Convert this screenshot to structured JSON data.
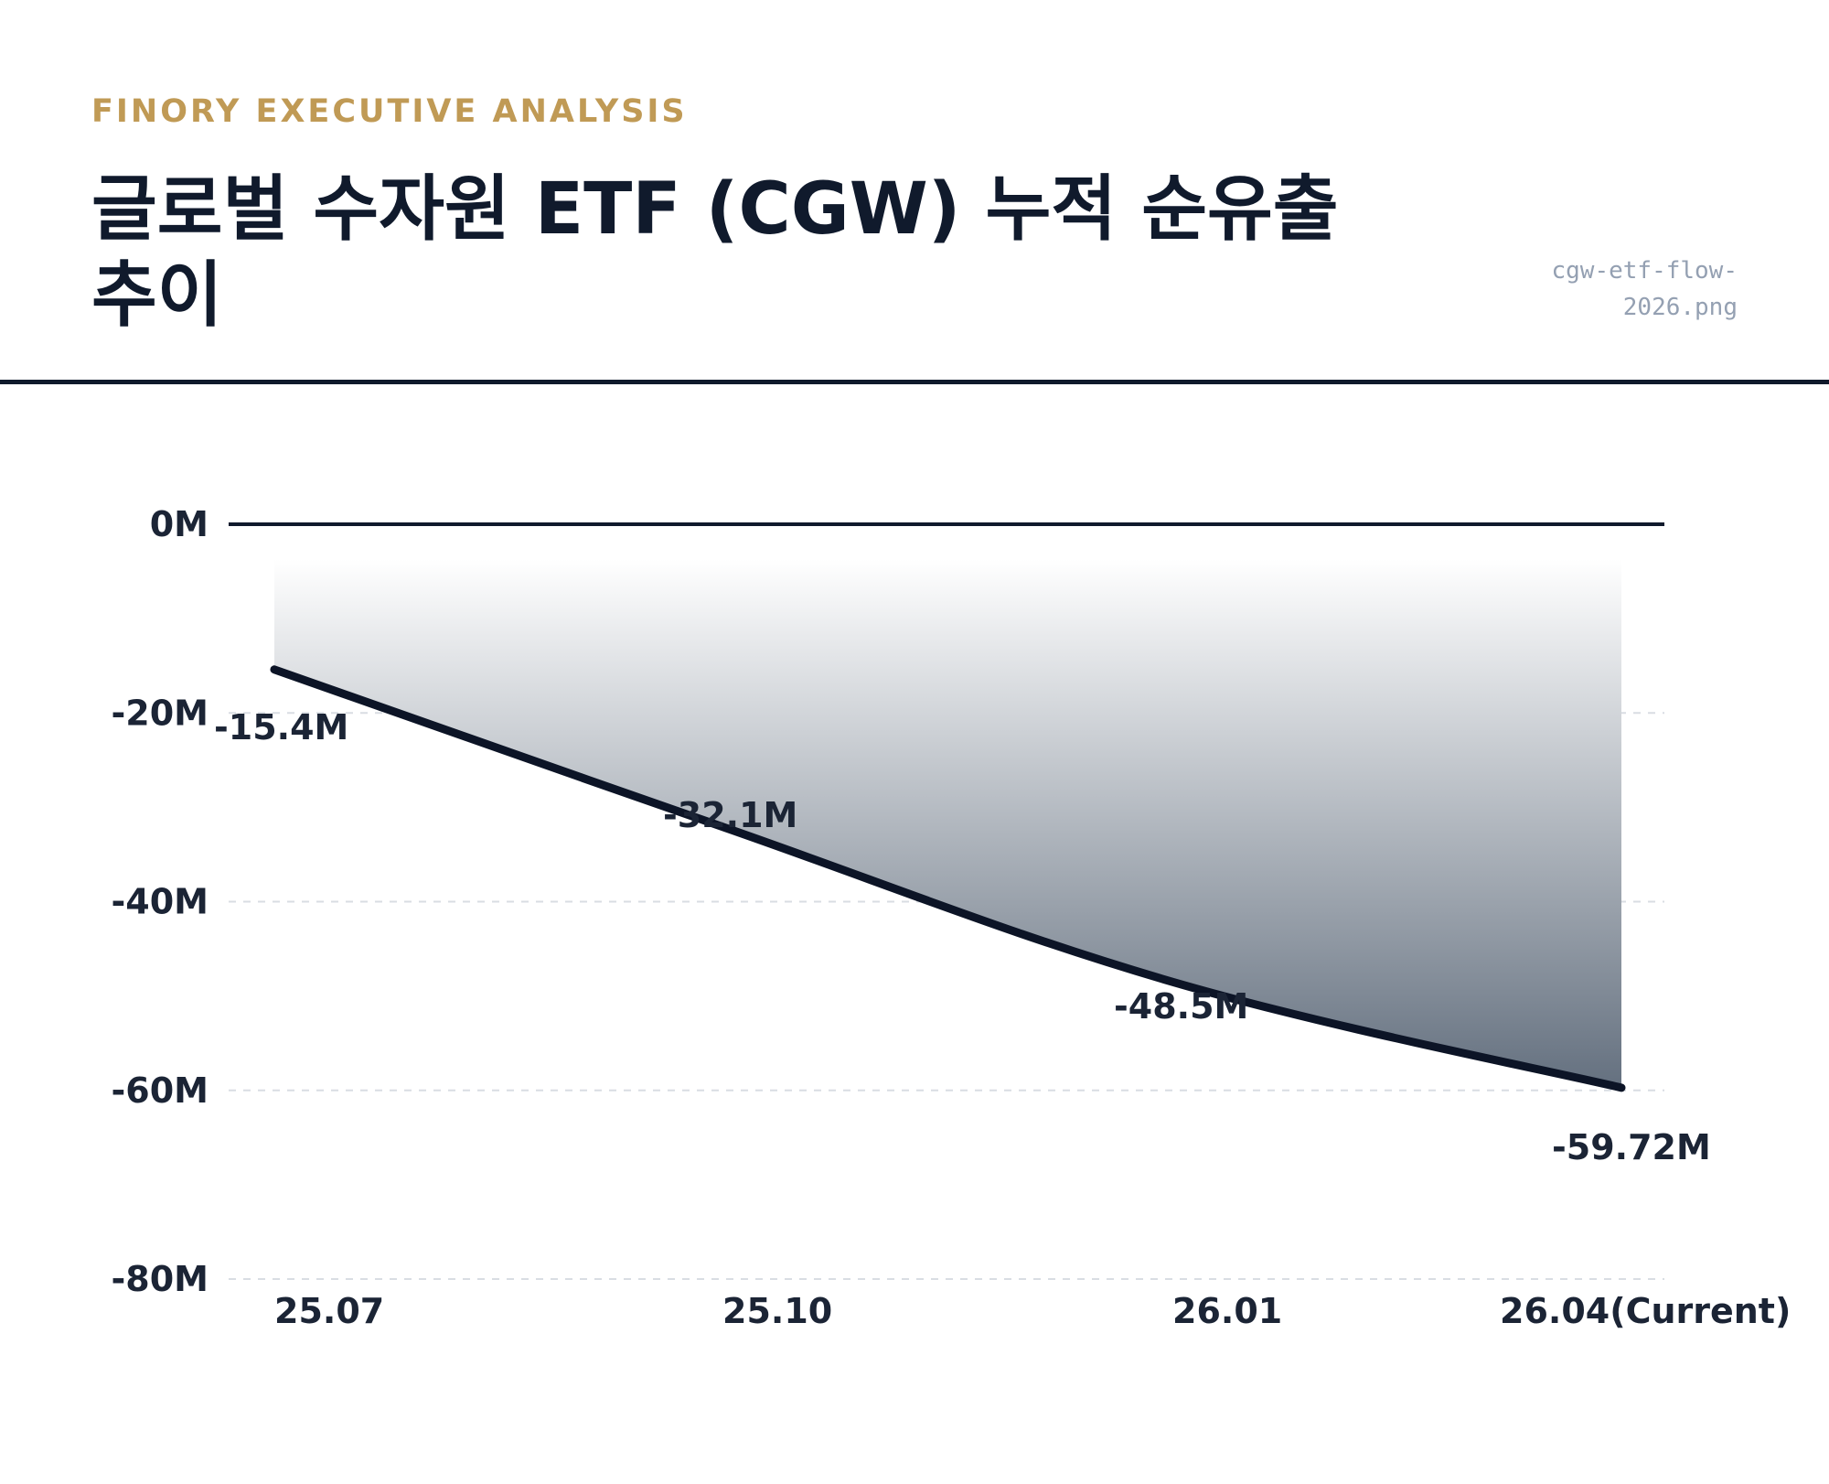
{
  "header": {
    "kicker": "FINORY EXECUTIVE ANALYSIS",
    "title": "글로벌 수자원 ETF (CGW) 누적 순유출 추이",
    "filename": "cgw-etf-flow-2026.png"
  },
  "colors": {
    "accent": "#C09A55",
    "ink": "#101a2c",
    "line": "#0c1426",
    "area_top": "#ffffff",
    "area_bottom": "#64707f",
    "grid": "#d9dde3",
    "muted": "#94a0b2"
  },
  "chart_data": {
    "type": "area",
    "categories": [
      "25.07",
      "25.10",
      "26.01",
      "26.04(Current)"
    ],
    "series": [
      {
        "values": [
          -15.4,
          -32.1,
          -48.5,
          -59.72
        ],
        "labels": [
          "-15.4M",
          "-32.1M",
          "-48.5M",
          "-59.72M"
        ]
      }
    ],
    "y_ticks": [
      {
        "value": 0,
        "label": "0M"
      },
      {
        "value": -20,
        "label": "-20M"
      },
      {
        "value": -40,
        "label": "-40M"
      },
      {
        "value": -60,
        "label": "-60M"
      },
      {
        "value": -80,
        "label": "-80M"
      }
    ],
    "ylim": [
      -80,
      0
    ],
    "grid": true,
    "legend": "none"
  }
}
